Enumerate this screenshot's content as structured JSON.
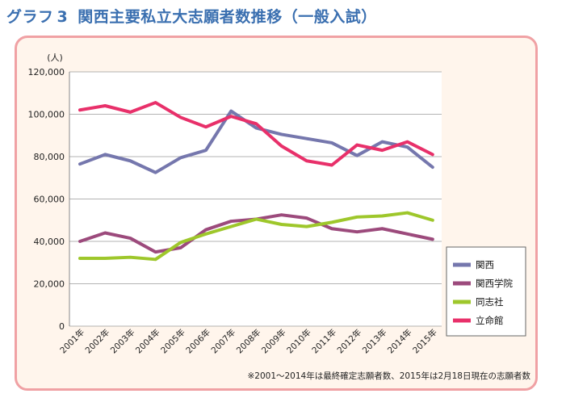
{
  "heading": {
    "label": "グラフ",
    "number": "3",
    "title": "関西主要私立大志願者数推移（一般入試）"
  },
  "footnote": "※2001～2014年は最終確定志願者数、2015年は2月18日現在の志願者数",
  "chart_data": {
    "type": "line",
    "title": "関西主要私立大志願者数推移（一般入試）",
    "ylabel": "(人)",
    "xlabel": "",
    "ylim": [
      0,
      120000
    ],
    "yticks": [
      0,
      20000,
      40000,
      60000,
      80000,
      100000,
      120000
    ],
    "ytick_labels": [
      "0",
      "20,000",
      "40,000",
      "60,000",
      "80,000",
      "100,000",
      "120,000"
    ],
    "grid": true,
    "legend_position": "right",
    "categories": [
      "2001年",
      "2002年",
      "2003年",
      "2004年",
      "2005年",
      "2006年",
      "2007年",
      "2008年",
      "2009年",
      "2010年",
      "2011年",
      "2012年",
      "2013年",
      "2014年",
      "2015年"
    ],
    "series": [
      {
        "name": "関西",
        "color": "#7577ad",
        "values": [
          76500,
          81000,
          78000,
          72500,
          79500,
          83000,
          101500,
          93500,
          90500,
          88500,
          86500,
          80500,
          87000,
          84500,
          75000
        ]
      },
      {
        "name": "関西学院",
        "color": "#9c4a7c",
        "values": [
          40000,
          44000,
          41500,
          35000,
          37000,
          45500,
          49500,
          50500,
          52500,
          51000,
          46000,
          44500,
          46000,
          43500,
          41000
        ]
      },
      {
        "name": "同志社",
        "color": "#9ec72b",
        "values": [
          32000,
          32000,
          32500,
          31500,
          39500,
          43500,
          47000,
          50500,
          48000,
          47000,
          49000,
          51500,
          52000,
          53500,
          50000
        ]
      },
      {
        "name": "立命館",
        "color": "#e8306a",
        "values": [
          102000,
          104000,
          101000,
          105500,
          98500,
          94000,
          99000,
          95500,
          85000,
          78000,
          76000,
          85500,
          83000,
          87000,
          81000
        ]
      }
    ]
  }
}
